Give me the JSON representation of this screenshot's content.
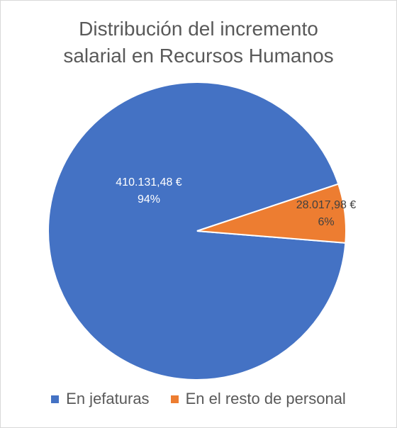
{
  "chart_data": {
    "type": "pie",
    "title_lines": [
      "Distribución del incremento",
      "salarial en Recursos Humanos"
    ],
    "categories": [
      "En jefaturas",
      "En el resto de personal"
    ],
    "values": [
      410131.48,
      28017.98
    ],
    "value_labels": [
      "410.131,48 €",
      "28.017,98 €"
    ],
    "percent_labels": [
      "94%",
      "6%"
    ],
    "colors": [
      "#4472c4",
      "#ed7d31"
    ],
    "label_colors": [
      "#ffffff",
      "#404040"
    ],
    "legend_position": "bottom"
  }
}
